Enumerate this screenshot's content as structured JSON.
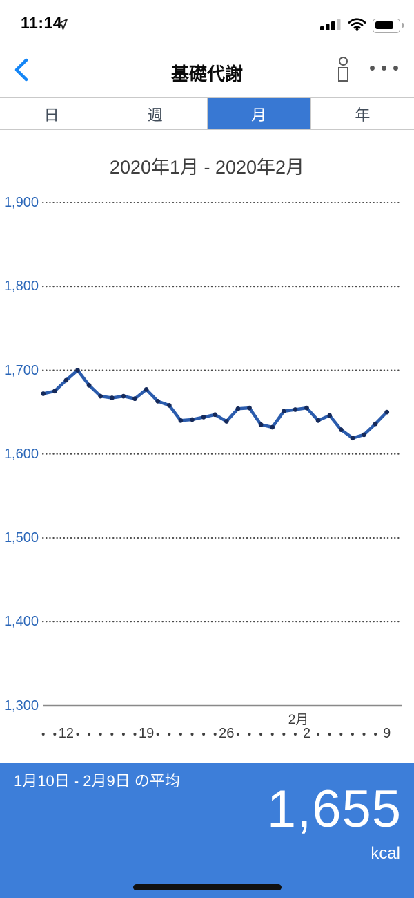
{
  "status": {
    "time": "11:14"
  },
  "header": {
    "title": "基礎代謝"
  },
  "tabs": {
    "items": [
      {
        "label": "日",
        "selected": false
      },
      {
        "label": "週",
        "selected": false
      },
      {
        "label": "月",
        "selected": true
      },
      {
        "label": "年",
        "selected": false
      }
    ]
  },
  "chart_data": {
    "type": "line",
    "title": "2020年1月 - 2020年2月",
    "unit": "kcal",
    "ylabel": "",
    "xlabel": "",
    "ylim": [
      1300,
      1900
    ],
    "yticks": [
      1900,
      1800,
      1700,
      1600,
      1500,
      1400,
      1300
    ],
    "ytick_labels": [
      "1,900",
      "1,800",
      "1,700",
      "1,600",
      "1,500",
      "1,400",
      "1,300"
    ],
    "x": [
      "1/10",
      "1/11",
      "1/12",
      "1/13",
      "1/14",
      "1/15",
      "1/16",
      "1/17",
      "1/18",
      "1/19",
      "1/20",
      "1/21",
      "1/22",
      "1/23",
      "1/24",
      "1/25",
      "1/26",
      "1/27",
      "1/28",
      "1/29",
      "1/30",
      "1/31",
      "2/1",
      "2/2",
      "2/3",
      "2/4",
      "2/5",
      "2/6",
      "2/7",
      "2/8",
      "2/9"
    ],
    "values": [
      1672,
      1675,
      1688,
      1700,
      1682,
      1669,
      1667,
      1669,
      1666,
      1677,
      1663,
      1658,
      1640,
      1641,
      1644,
      1647,
      1639,
      1654,
      1655,
      1635,
      1632,
      1651,
      1653,
      1655,
      1640,
      1646,
      1629,
      1619,
      1623,
      1636,
      1650
    ],
    "xticks": [
      {
        "index": 2,
        "label": "12"
      },
      {
        "index": 9,
        "label": "19"
      },
      {
        "index": 16,
        "label": "26"
      },
      {
        "index": 23,
        "label": "2"
      },
      {
        "index": 30,
        "label": "9"
      }
    ],
    "month_annotation": {
      "index": 23,
      "label": "2月"
    },
    "grid": "dotted horizontal lines",
    "legend": "none",
    "line_color": "#2b5cad",
    "marker_color": "#152a5b"
  },
  "summary": {
    "label": "1月10日 - 2月9日 の平均",
    "value": "1,655",
    "unit": "kcal"
  },
  "colors": {
    "tab_selected_blue": "#3878d3",
    "footer_blue": "#3d7ed9",
    "axis_label_blue": "#2a66b8",
    "back_chevron_blue": "#1586f6"
  }
}
